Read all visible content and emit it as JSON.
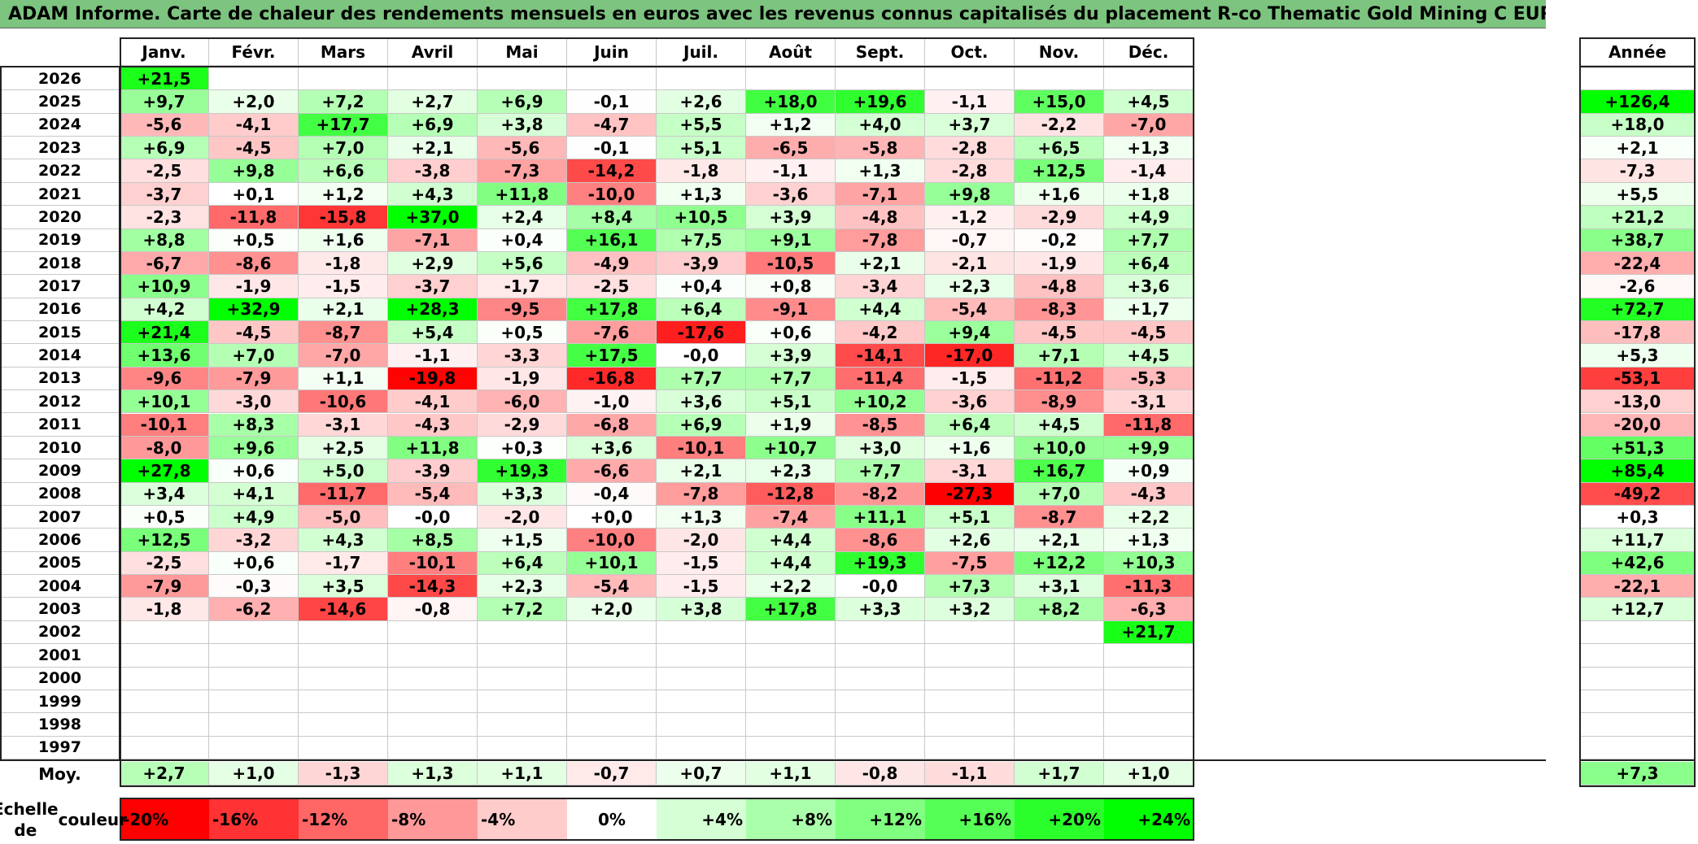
{
  "title": "ADAM Informe. Carte de chaleur des rendements mensuels en euros avec les revenus connus capitalisés du placement R-co Thematic Gold Mining C EUR Acc",
  "chart_data": {
    "type": "heatmap",
    "months": [
      "Janv.",
      "Févr.",
      "Mars",
      "Avril",
      "Mai",
      "Juin",
      "Juil.",
      "Août",
      "Sept.",
      "Oct.",
      "Nov.",
      "Déc."
    ],
    "annual_header": "Année",
    "rows": [
      {
        "year": "2026",
        "values": [
          "+21,5",
          "",
          "",
          "",
          "",
          "",
          "",
          "",
          "",
          "",
          "",
          ""
        ],
        "annual": ""
      },
      {
        "year": "2025",
        "values": [
          "+9,7",
          "+2,0",
          "+7,2",
          "+2,7",
          "+6,9",
          "-0,1",
          "+2,6",
          "+18,0",
          "+19,6",
          "-1,1",
          "+15,0",
          "+4,5"
        ],
        "annual": "+126,4"
      },
      {
        "year": "2024",
        "values": [
          "-5,6",
          "-4,1",
          "+17,7",
          "+6,9",
          "+3,8",
          "-4,7",
          "+5,5",
          "+1,2",
          "+4,0",
          "+3,7",
          "-2,2",
          "-7,0"
        ],
        "annual": "+18,0"
      },
      {
        "year": "2023",
        "values": [
          "+6,9",
          "-4,5",
          "+7,0",
          "+2,1",
          "-5,6",
          "-0,1",
          "+5,1",
          "-6,5",
          "-5,8",
          "-2,8",
          "+6,5",
          "+1,3"
        ],
        "annual": "+2,1"
      },
      {
        "year": "2022",
        "values": [
          "-2,5",
          "+9,8",
          "+6,6",
          "-3,8",
          "-7,3",
          "-14,2",
          "-1,8",
          "-1,1",
          "+1,3",
          "-2,8",
          "+12,5",
          "-1,4"
        ],
        "annual": "-7,3"
      },
      {
        "year": "2021",
        "values": [
          "-3,7",
          "+0,1",
          "+1,2",
          "+4,3",
          "+11,8",
          "-10,0",
          "+1,3",
          "-3,6",
          "-7,1",
          "+9,8",
          "+1,6",
          "+1,8"
        ],
        "annual": "+5,5"
      },
      {
        "year": "2020",
        "values": [
          "-2,3",
          "-11,8",
          "-15,8",
          "+37,0",
          "+2,4",
          "+8,4",
          "+10,5",
          "+3,9",
          "-4,8",
          "-1,2",
          "-2,9",
          "+4,9"
        ],
        "annual": "+21,2"
      },
      {
        "year": "2019",
        "values": [
          "+8,8",
          "+0,5",
          "+1,6",
          "-7,1",
          "+0,4",
          "+16,1",
          "+7,5",
          "+9,1",
          "-7,8",
          "-0,7",
          "-0,2",
          "+7,7"
        ],
        "annual": "+38,7"
      },
      {
        "year": "2018",
        "values": [
          "-6,7",
          "-8,6",
          "-1,8",
          "+2,9",
          "+5,6",
          "-4,9",
          "-3,9",
          "-10,5",
          "+2,1",
          "-2,1",
          "-1,9",
          "+6,4"
        ],
        "annual": "-22,4"
      },
      {
        "year": "2017",
        "values": [
          "+10,9",
          "-1,9",
          "-1,5",
          "-3,7",
          "-1,7",
          "-2,5",
          "+0,4",
          "+0,8",
          "-3,4",
          "+2,3",
          "-4,8",
          "+3,6"
        ],
        "annual": "-2,6"
      },
      {
        "year": "2016",
        "values": [
          "+4,2",
          "+32,9",
          "+2,1",
          "+28,3",
          "-9,5",
          "+17,8",
          "+6,4",
          "-9,1",
          "+4,4",
          "-5,4",
          "-8,3",
          "+1,7"
        ],
        "annual": "+72,7"
      },
      {
        "year": "2015",
        "values": [
          "+21,4",
          "-4,5",
          "-8,7",
          "+5,4",
          "+0,5",
          "-7,6",
          "-17,6",
          "+0,6",
          "-4,2",
          "+9,4",
          "-4,5",
          "-4,5"
        ],
        "annual": "-17,8"
      },
      {
        "year": "2014",
        "values": [
          "+13,6",
          "+7,0",
          "-7,0",
          "-1,1",
          "-3,3",
          "+17,5",
          "-0,0",
          "+3,9",
          "-14,1",
          "-17,0",
          "+7,1",
          "+4,5"
        ],
        "annual": "+5,3"
      },
      {
        "year": "2013",
        "values": [
          "-9,6",
          "-7,9",
          "+1,1",
          "-19,8",
          "-1,9",
          "-16,8",
          "+7,7",
          "+7,7",
          "-11,4",
          "-1,5",
          "-11,2",
          "-5,3"
        ],
        "annual": "-53,1"
      },
      {
        "year": "2012",
        "values": [
          "+10,1",
          "-3,0",
          "-10,6",
          "-4,1",
          "-6,0",
          "-1,0",
          "+3,6",
          "+5,1",
          "+10,2",
          "-3,6",
          "-8,9",
          "-3,1"
        ],
        "annual": "-13,0"
      },
      {
        "year": "2011",
        "values": [
          "-10,1",
          "+8,3",
          "-3,1",
          "-4,3",
          "-2,9",
          "-6,8",
          "+6,9",
          "+1,9",
          "-8,5",
          "+6,4",
          "+4,5",
          "-11,8"
        ],
        "annual": "-20,0"
      },
      {
        "year": "2010",
        "values": [
          "-8,0",
          "+9,6",
          "+2,5",
          "+11,8",
          "+0,3",
          "+3,6",
          "-10,1",
          "+10,7",
          "+3,0",
          "+1,6",
          "+10,0",
          "+9,9"
        ],
        "annual": "+51,3"
      },
      {
        "year": "2009",
        "values": [
          "+27,8",
          "+0,6",
          "+5,0",
          "-3,9",
          "+19,3",
          "-6,6",
          "+2,1",
          "+2,3",
          "+7,7",
          "-3,1",
          "+16,7",
          "+0,9"
        ],
        "annual": "+85,4"
      },
      {
        "year": "2008",
        "values": [
          "+3,4",
          "+4,1",
          "-11,7",
          "-5,4",
          "+3,3",
          "-0,4",
          "-7,8",
          "-12,8",
          "-8,2",
          "-27,3",
          "+7,0",
          "-4,3"
        ],
        "annual": "-49,2"
      },
      {
        "year": "2007",
        "values": [
          "+0,5",
          "+4,9",
          "-5,0",
          "-0,0",
          "-2,0",
          "+0,0",
          "+1,3",
          "-7,4",
          "+11,1",
          "+5,1",
          "-8,7",
          "+2,2"
        ],
        "annual": "+0,3"
      },
      {
        "year": "2006",
        "values": [
          "+12,5",
          "-3,2",
          "+4,3",
          "+8,5",
          "+1,5",
          "-10,0",
          "-2,0",
          "+4,4",
          "-8,6",
          "+2,6",
          "+2,1",
          "+1,3"
        ],
        "annual": "+11,7"
      },
      {
        "year": "2005",
        "values": [
          "-2,5",
          "+0,6",
          "-1,7",
          "-10,1",
          "+6,4",
          "+10,1",
          "-1,5",
          "+4,4",
          "+19,3",
          "-7,5",
          "+12,2",
          "+10,3"
        ],
        "annual": "+42,6"
      },
      {
        "year": "2004",
        "values": [
          "-7,9",
          "-0,3",
          "+3,5",
          "-14,3",
          "+2,3",
          "-5,4",
          "-1,5",
          "+2,2",
          "-0,0",
          "+7,3",
          "+3,1",
          "-11,3"
        ],
        "annual": "-22,1"
      },
      {
        "year": "2003",
        "values": [
          "-1,8",
          "-6,2",
          "-14,6",
          "-0,8",
          "+7,2",
          "+2,0",
          "+3,8",
          "+17,8",
          "+3,3",
          "+3,2",
          "+8,2",
          "-6,3"
        ],
        "annual": "+12,7"
      },
      {
        "year": "2002",
        "values": [
          "",
          "",
          "",
          "",
          "",
          "",
          "",
          "",
          "",
          "",
          "",
          "+21,7"
        ],
        "annual": ""
      },
      {
        "year": "2001",
        "values": [
          "",
          "",
          "",
          "",
          "",
          "",
          "",
          "",
          "",
          "",
          "",
          ""
        ],
        "annual": ""
      },
      {
        "year": "2000",
        "values": [
          "",
          "",
          "",
          "",
          "",
          "",
          "",
          "",
          "",
          "",
          "",
          ""
        ],
        "annual": ""
      },
      {
        "year": "1999",
        "values": [
          "",
          "",
          "",
          "",
          "",
          "",
          "",
          "",
          "",
          "",
          "",
          ""
        ],
        "annual": ""
      },
      {
        "year": "1998",
        "values": [
          "",
          "",
          "",
          "",
          "",
          "",
          "",
          "",
          "",
          "",
          "",
          ""
        ],
        "annual": ""
      },
      {
        "year": "1997",
        "values": [
          "",
          "",
          "",
          "",
          "",
          "",
          "",
          "",
          "",
          "",
          "",
          ""
        ],
        "annual": ""
      }
    ],
    "average_label": "Moy.",
    "averages": [
      "+2,7",
      "+1,0",
      "-1,3",
      "+1,3",
      "+1,1",
      "-0,7",
      "+0,7",
      "+1,1",
      "-0,8",
      "-1,1",
      "+1,7",
      "+1,0"
    ],
    "average_annual": "+7,3",
    "scale_label_line1": "Echelle de",
    "scale_label_line2": "couleur",
    "scale": [
      "-20%",
      "-16%",
      "-12%",
      "-8%",
      "-4%",
      "0%",
      "+4%",
      "+8%",
      "+12%",
      "+16%",
      "+20%",
      "+24%"
    ]
  }
}
